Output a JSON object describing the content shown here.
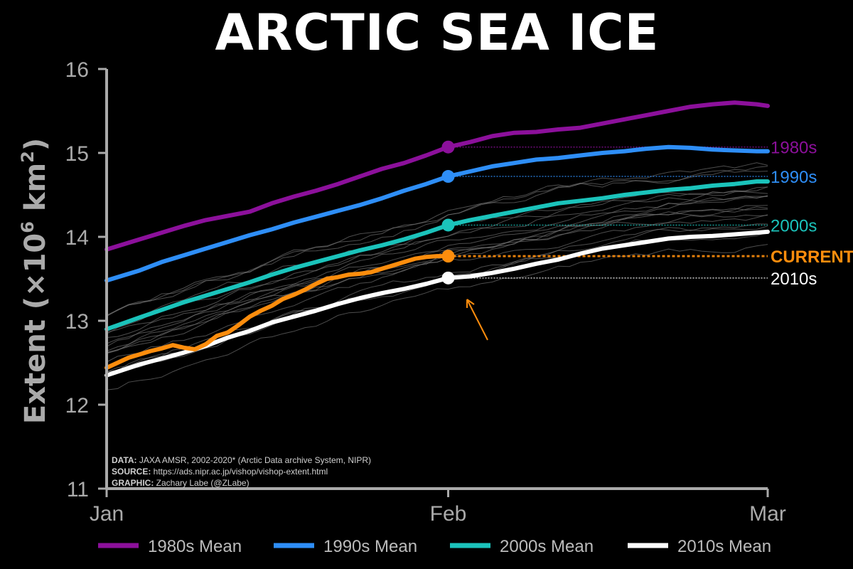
{
  "chart_data": {
    "type": "line",
    "title": "ARCTIC SEA ICE",
    "ylabel": "Extent (×10⁶ km²)",
    "ylabel_main": "Extent (×10",
    "ylabel_sup1": "6",
    "ylabel_mid": " km",
    "ylabel_sup2": "2",
    "ylabel_end": ")",
    "ylim": [
      11,
      16
    ],
    "yticks": [
      "11",
      "12",
      "13",
      "14",
      "15",
      "16"
    ],
    "xlim": [
      0,
      60
    ],
    "xticks": [
      {
        "label": "Jan",
        "day": 0
      },
      {
        "label": "Feb",
        "day": 31
      },
      {
        "label": "Mar",
        "day": 60
      }
    ],
    "series": [
      {
        "name": "1980s Mean",
        "label": "1980s",
        "color": "#8c109b",
        "x": [
          0,
          3,
          5,
          7,
          9,
          11,
          13,
          15,
          17,
          19,
          21,
          23,
          25,
          27,
          29,
          31,
          33,
          35,
          37,
          39,
          41,
          43,
          45,
          47,
          49,
          51,
          53,
          55,
          57,
          59,
          60
        ],
        "y": [
          13.85,
          13.97,
          14.05,
          14.13,
          14.2,
          14.25,
          14.3,
          14.4,
          14.48,
          14.55,
          14.63,
          14.72,
          14.81,
          14.88,
          14.97,
          15.07,
          15.13,
          15.2,
          15.24,
          15.25,
          15.28,
          15.3,
          15.35,
          15.4,
          15.45,
          15.5,
          15.55,
          15.58,
          15.6,
          15.58,
          15.56
        ]
      },
      {
        "name": "1990s Mean",
        "label": "1990s",
        "color": "#2e8ef7",
        "x": [
          0,
          3,
          5,
          7,
          9,
          11,
          13,
          15,
          17,
          19,
          21,
          23,
          25,
          27,
          29,
          31,
          33,
          35,
          37,
          39,
          41,
          43,
          45,
          47,
          49,
          51,
          53,
          55,
          57,
          59,
          60
        ],
        "y": [
          13.48,
          13.6,
          13.7,
          13.78,
          13.86,
          13.94,
          14.02,
          14.09,
          14.17,
          14.24,
          14.31,
          14.38,
          14.46,
          14.55,
          14.63,
          14.72,
          14.78,
          14.84,
          14.88,
          14.92,
          14.94,
          14.97,
          15.0,
          15.02,
          15.05,
          15.07,
          15.06,
          15.04,
          15.03,
          15.02,
          15.02
        ]
      },
      {
        "name": "2000s Mean",
        "label": "2000s",
        "color": "#1bc3bb",
        "x": [
          0,
          3,
          5,
          7,
          9,
          11,
          13,
          15,
          17,
          19,
          21,
          23,
          25,
          27,
          29,
          31,
          33,
          35,
          37,
          39,
          41,
          43,
          45,
          47,
          49,
          51,
          53,
          55,
          57,
          59,
          60
        ],
        "y": [
          12.9,
          13.04,
          13.13,
          13.22,
          13.3,
          13.38,
          13.46,
          13.55,
          13.63,
          13.7,
          13.77,
          13.84,
          13.9,
          13.97,
          14.05,
          14.14,
          14.2,
          14.25,
          14.3,
          14.35,
          14.4,
          14.43,
          14.46,
          14.5,
          14.53,
          14.56,
          14.58,
          14.61,
          14.63,
          14.66,
          14.66
        ]
      },
      {
        "name": "2010s Mean",
        "label": "2010s",
        "color": "#ffffff",
        "x": [
          0,
          3,
          5,
          7,
          9,
          11,
          13,
          15,
          17,
          19,
          21,
          23,
          25,
          27,
          29,
          31,
          33,
          35,
          37,
          39,
          41,
          43,
          45,
          47,
          49,
          51,
          53,
          55,
          57,
          59,
          60
        ],
        "y": [
          12.35,
          12.48,
          12.55,
          12.62,
          12.7,
          12.8,
          12.88,
          12.98,
          13.05,
          13.12,
          13.2,
          13.27,
          13.33,
          13.38,
          13.44,
          13.51,
          13.53,
          13.57,
          13.62,
          13.68,
          13.73,
          13.8,
          13.86,
          13.9,
          13.94,
          13.98,
          14.0,
          14.01,
          14.03,
          14.05,
          14.06
        ]
      },
      {
        "name": "",
        "label": "CURRENT",
        "color": "#fd8d0d",
        "x": [
          0,
          1,
          2,
          3,
          4,
          5,
          6,
          7,
          8,
          9,
          10,
          11,
          12,
          13,
          14,
          15,
          16,
          17,
          18,
          19,
          20,
          21,
          22,
          23,
          24,
          25,
          26,
          27,
          28,
          29,
          30,
          31
        ],
        "y": [
          12.44,
          12.5,
          12.56,
          12.6,
          12.64,
          12.67,
          12.71,
          12.68,
          12.66,
          12.72,
          12.82,
          12.86,
          12.95,
          13.05,
          13.12,
          13.18,
          13.26,
          13.31,
          13.37,
          13.44,
          13.5,
          13.52,
          13.55,
          13.56,
          13.58,
          13.62,
          13.66,
          13.7,
          13.74,
          13.76,
          13.77,
          13.77
        ]
      }
    ],
    "dot_day": 31,
    "end_labels_order": [
      "1980s",
      "1990s",
      "2000s",
      "CURRENT",
      "2010s"
    ]
  },
  "legend": [
    {
      "label": "1980s Mean",
      "color": "#8c109b"
    },
    {
      "label": "1990s Mean",
      "color": "#2e8ef7"
    },
    {
      "label": "2000s Mean",
      "color": "#1bc3bb"
    },
    {
      "label": "2010s Mean",
      "color": "#ffffff"
    }
  ],
  "credits": {
    "data_key": "DATA:",
    "data_val": " JAXA AMSR, 2002-2020* (Arctic Data archive System, NIPR)",
    "source_key": "SOURCE:",
    "source_val": " https://ads.nipr.ac.jp/vishop/vishop-extent.html",
    "graphic_key": "GRAPHIC:",
    "graphic_val": " Zachary Labe (@ZLabe)"
  },
  "colors": {
    "axis": "#aaaaaa",
    "background": "#000000",
    "individual_years": "#777777",
    "current": "#fd8d0d"
  }
}
